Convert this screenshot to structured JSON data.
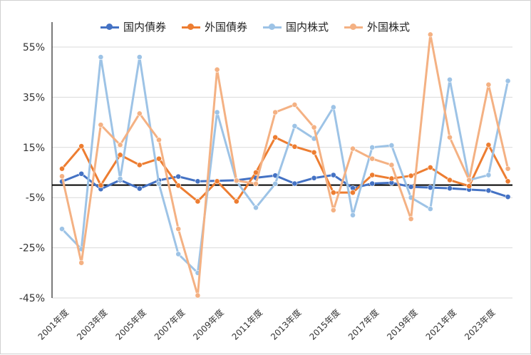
{
  "chart_data": {
    "type": "line",
    "title": "",
    "xlabel": "",
    "ylabel": "",
    "ylim": [
      -45,
      65
    ],
    "yticks": [
      "55%",
      "35%",
      "15%",
      "-5%",
      "-25%",
      "-45%"
    ],
    "ytick_values": [
      55,
      35,
      15,
      -5,
      -25,
      -45
    ],
    "x_tick_labels": [
      "2001年度",
      "2003年度",
      "2005年度",
      "2007年度",
      "2009年度",
      "2011年度",
      "2013年度",
      "2015年度",
      "2017年度",
      "2019年度",
      "2021年度",
      "2023年度"
    ],
    "x_count": 24,
    "grid": "horizontal",
    "legend_position": "top",
    "series": [
      {
        "name": "国内債券",
        "color": "#4472c4",
        "values": [
          1.4,
          4.5,
          -1.6,
          2.0,
          -1.4,
          1.9,
          3.4,
          1.5,
          1.7,
          1.9,
          2.9,
          3.8,
          0.6,
          2.8,
          4.0,
          -1.2,
          0.6,
          0.9,
          -0.7,
          -1.0,
          -1.3,
          -1.8,
          -2.2,
          -4.7
        ]
      },
      {
        "name": "外国債券",
        "color": "#ed7d31",
        "values": [
          6.5,
          15.5,
          -0.1,
          12.0,
          8.0,
          10.5,
          -0.2,
          -6.5,
          1.5,
          -6.5,
          5.0,
          19.0,
          15.3,
          13.0,
          -3.0,
          -3.0,
          4.0,
          2.6,
          3.7,
          7.0,
          2.0,
          -0.4,
          16.0,
          1.5
        ]
      },
      {
        "name": "国内株式",
        "color": "#9dc3e6",
        "values": [
          -17.5,
          -25.5,
          51.0,
          2.5,
          51.0,
          0.5,
          -27.5,
          -35.0,
          29.0,
          1.5,
          -9.0,
          0.5,
          23.5,
          18.5,
          31.0,
          -12.0,
          15.0,
          15.8,
          -5.0,
          -9.5,
          42.0,
          2.0,
          4.0,
          41.5
        ]
      },
      {
        "name": "外国株式",
        "color": "#f4b183",
        "values": [
          3.5,
          -31.0,
          24.0,
          16.0,
          28.5,
          18.0,
          -17.5,
          -44.0,
          46.0,
          1.8,
          0.5,
          29.0,
          32.0,
          23.0,
          -10.0,
          14.5,
          10.5,
          8.0,
          -13.5,
          60.0,
          19.0,
          2.0,
          40.0,
          6.5
        ]
      }
    ]
  }
}
